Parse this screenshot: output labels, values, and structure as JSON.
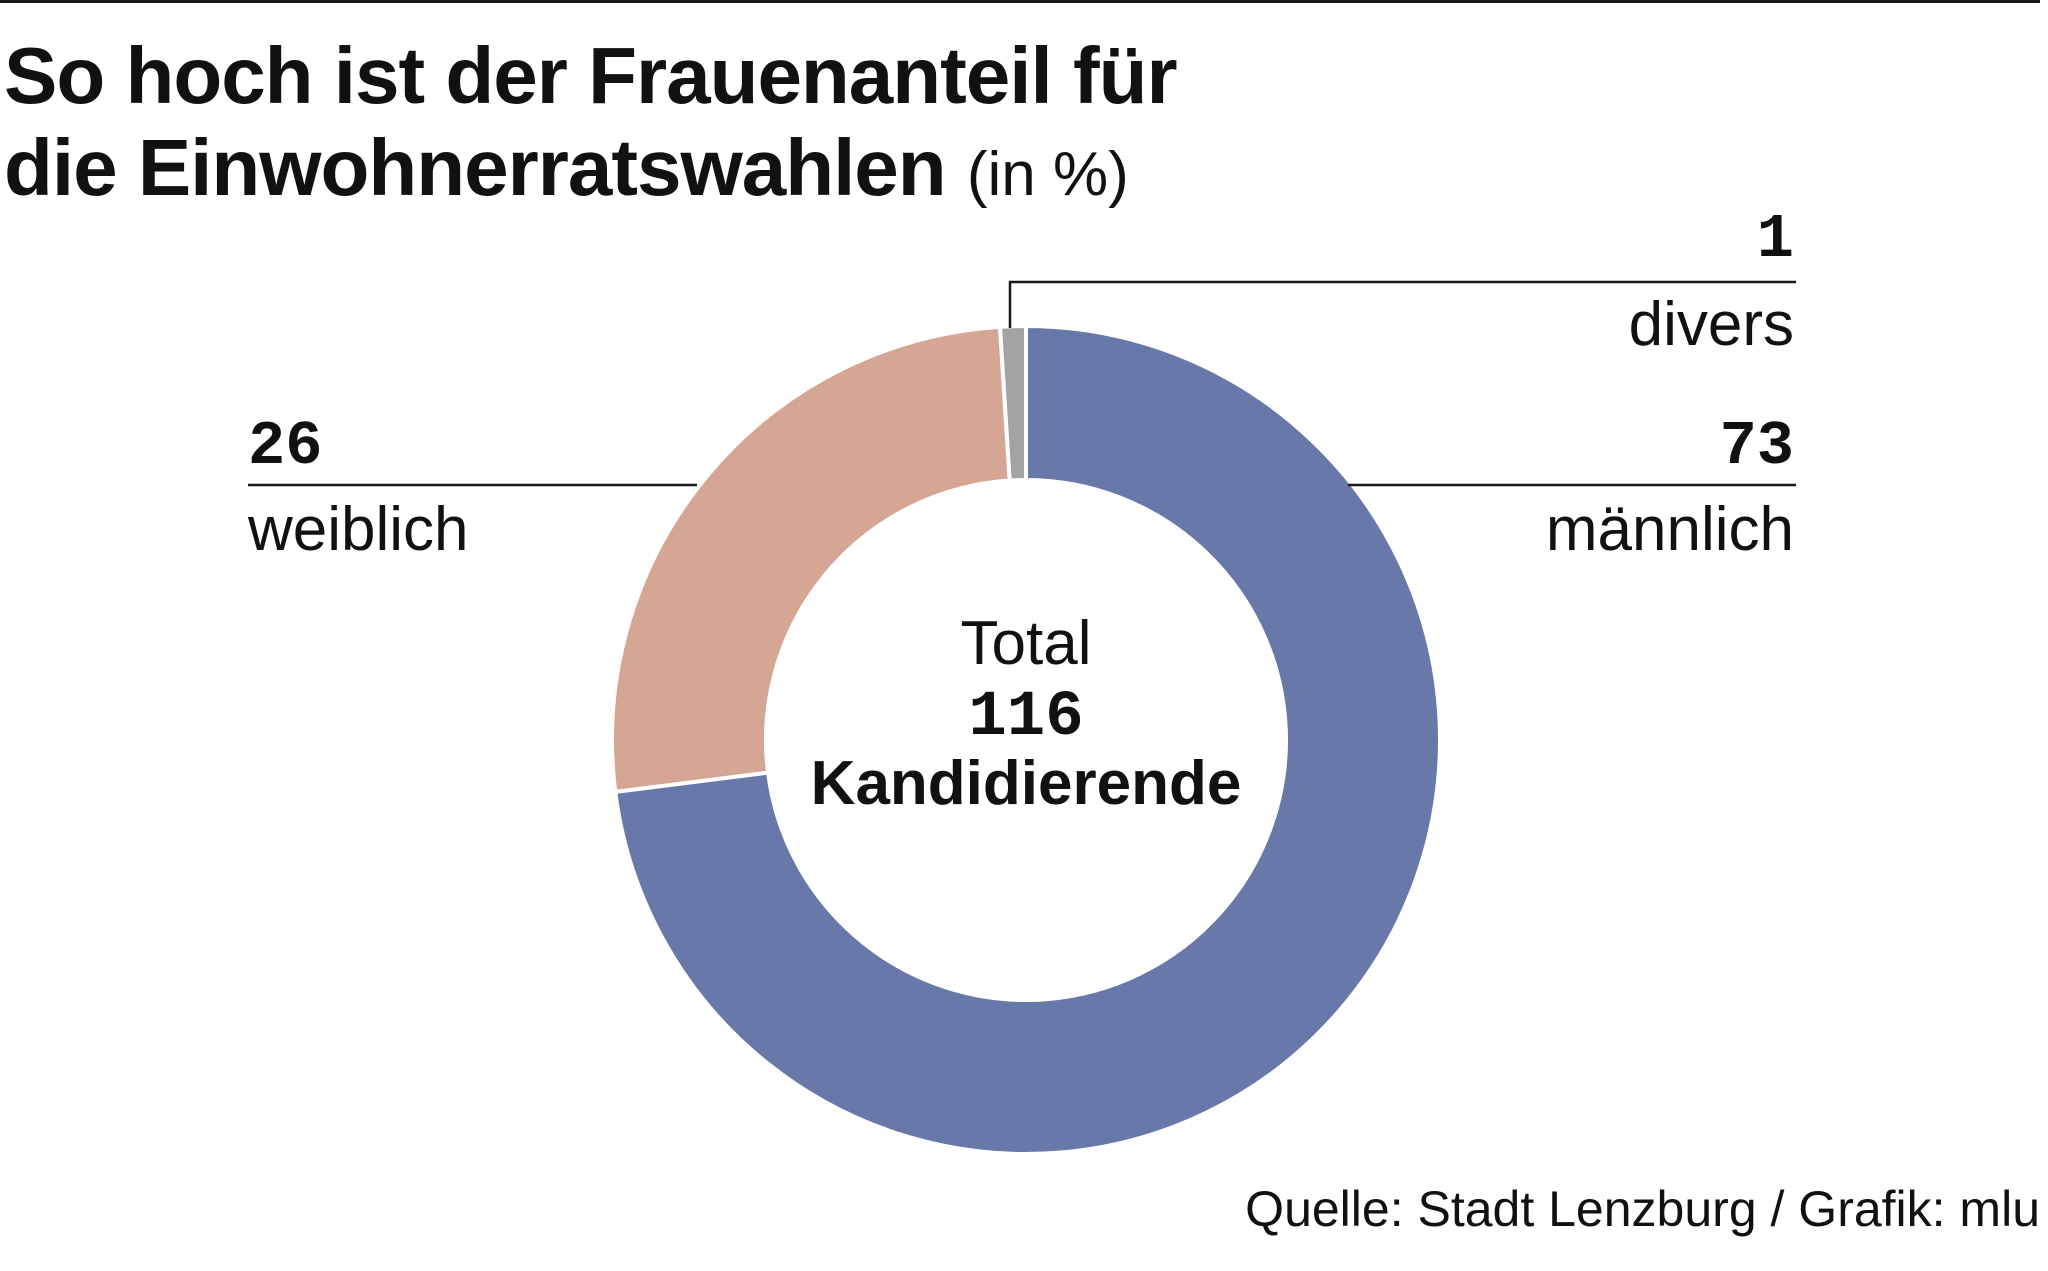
{
  "chart_data": {
    "type": "pie",
    "variant": "donut",
    "title": "So hoch ist der Frauenanteil für die Einwohnerratswahlen",
    "title_line1": "So hoch ist der Frauenanteil für",
    "title_line2": "die Einwohnerratswahlen",
    "unit": "(in %)",
    "slices": [
      {
        "label": "männlich",
        "value": 73,
        "color": "#6878a8"
      },
      {
        "label": "weiblich",
        "value": 26,
        "color": "#d6a694"
      },
      {
        "label": "divers",
        "value": 1,
        "color": "#a3a3a3"
      }
    ],
    "center": {
      "label": "Total",
      "total": "116",
      "caption": "Kandidierende"
    },
    "source": "Quelle: Stadt Lenzburg / Grafik: mlu"
  }
}
